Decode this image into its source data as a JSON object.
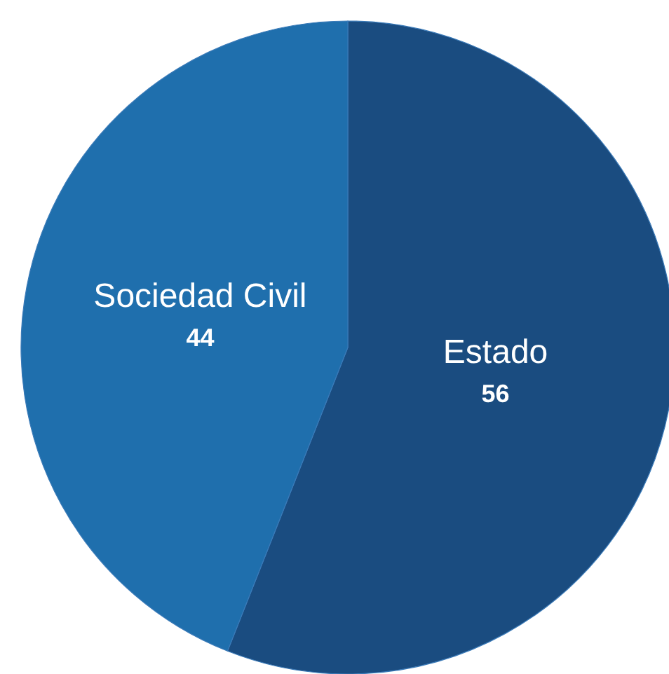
{
  "chart_data": {
    "type": "pie",
    "categories": [
      "Estado",
      "Sociedad Civil"
    ],
    "values": [
      56,
      44
    ],
    "colors": [
      "#1a4c80",
      "#1f6fad"
    ],
    "data_labels": true
  }
}
